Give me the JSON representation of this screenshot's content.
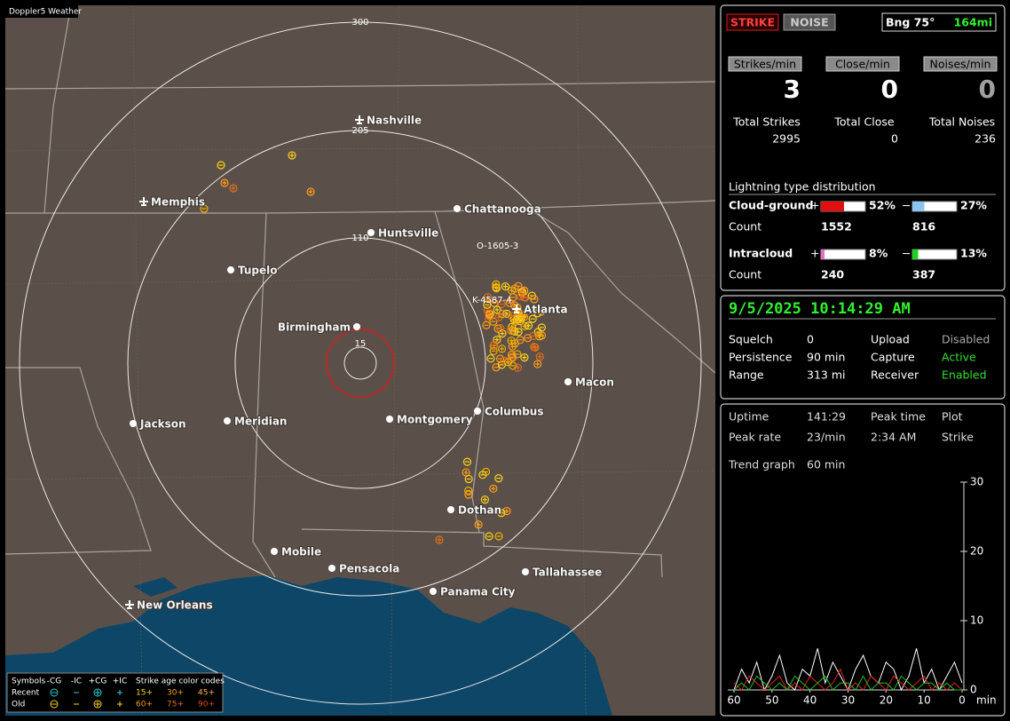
{
  "app_title": "Doppler5 Weather",
  "map": {
    "range_rings": [
      "300",
      "205",
      "110",
      "15"
    ],
    "cities": [
      "Nashville",
      "Memphis",
      "Chattanooga",
      "Huntsville",
      "Tupelo",
      "Birmingham",
      "Atlanta",
      "Macon",
      "Jackson",
      "Meridian",
      "Montgomery",
      "Columbus",
      "Dothan",
      "Mobile",
      "Pensacola",
      "Tallahassee",
      "Panama City",
      "New Orleans"
    ],
    "storms": [
      "O-1605-3",
      "K-4587-4"
    ],
    "legend": {
      "symbols_label": "Symbols",
      "columns": [
        "-CG",
        "-IC",
        "+CG",
        "+IC"
      ],
      "age_label": "Strike age color codes",
      "rows": [
        {
          "name": "Recent",
          "ages": [
            "15+",
            "30+",
            "45+"
          ]
        },
        {
          "name": "Old",
          "ages": [
            "60+",
            "75+",
            "90+"
          ]
        }
      ]
    }
  },
  "mode_buttons": [
    "STRIKE",
    "NOISE"
  ],
  "bearing": "Bng 75°",
  "distance": "164mi",
  "rates": [
    {
      "label": "Strikes/min",
      "value": 3
    },
    {
      "label": "Close/min",
      "value": 0
    },
    {
      "label": "Noises/min",
      "value": 0
    }
  ],
  "totals": [
    {
      "label": "Total Strikes",
      "value": 2995
    },
    {
      "label": "Total Close",
      "value": 0
    },
    {
      "label": "Total Noises",
      "value": 236
    }
  ],
  "distribution": {
    "title": "Lightning type distribution",
    "count_label": "Count",
    "types": [
      {
        "name": "Cloud-ground",
        "pos": {
          "sign": "+",
          "percent": 52,
          "percent_label": "52%",
          "count": 1552,
          "color": "#e01010"
        },
        "neg": {
          "sign": "−",
          "percent": 27,
          "percent_label": "27%",
          "count": 816,
          "color": "#8cc4f0"
        }
      },
      {
        "name": "Intracloud",
        "pos": {
          "sign": "+",
          "percent": 8,
          "percent_label": "8%",
          "count": 240,
          "color": "#e070c0"
        },
        "neg": {
          "sign": "−",
          "percent": 13,
          "percent_label": "13%",
          "count": 387,
          "color": "#20d020"
        }
      }
    ]
  },
  "datetime": "9/5/2025 10:14:29 AM",
  "status": [
    [
      {
        "label": "Squelch",
        "value": "0"
      },
      {
        "label": "Upload",
        "value": "Disabled",
        "color": "#a8a8a8"
      }
    ],
    [
      {
        "label": "Persistence",
        "value": "90 min"
      },
      {
        "label": "Capture",
        "value": "Active",
        "color": "#30e030"
      }
    ],
    [
      {
        "label": "Range",
        "value": "313 mi"
      },
      {
        "label": "Receiver",
        "value": "Enabled",
        "color": "#30e030"
      }
    ]
  ],
  "stats": [
    [
      {
        "label": "Uptime",
        "value": "141:29"
      },
      {
        "label": "Peak time",
        "value": "Plot"
      }
    ],
    [
      {
        "label": "Peak rate",
        "value": "23/min"
      },
      {
        "label": "2:34 AM",
        "value": "Strike"
      }
    ]
  ],
  "trend": {
    "label": "Trend graph",
    "window": "60 min",
    "x_unit": "min",
    "xlim": [
      60,
      0
    ],
    "ylim": [
      0,
      30
    ],
    "xticks": [
      60,
      50,
      40,
      30,
      20,
      10,
      0
    ],
    "yticks": [
      30,
      20,
      10,
      0
    ],
    "x": [
      60,
      58,
      56,
      54,
      52,
      50,
      48,
      46,
      44,
      42,
      40,
      38,
      36,
      34,
      32,
      30,
      28,
      26,
      24,
      22,
      20,
      18,
      16,
      14,
      12,
      10,
      8,
      6,
      4,
      2,
      0
    ],
    "series": [
      {
        "color": "#ffffff",
        "values": [
          0,
          3,
          1,
          4,
          0,
          2,
          5,
          1,
          0,
          3,
          2,
          6,
          1,
          4,
          2,
          0,
          3,
          5,
          2,
          1,
          4,
          3,
          0,
          2,
          6,
          1,
          3,
          0,
          2,
          4,
          1
        ]
      },
      {
        "color": "#e02020",
        "values": [
          1,
          0,
          2,
          1,
          0,
          1,
          2,
          0,
          1,
          0,
          2,
          1,
          0,
          1,
          3,
          0,
          1,
          0,
          2,
          1,
          0,
          2,
          1,
          0,
          1,
          2,
          0,
          1,
          0,
          1,
          0
        ]
      },
      {
        "color": "#20c020",
        "values": [
          0,
          1,
          0,
          2,
          1,
          0,
          1,
          0,
          2,
          1,
          0,
          1,
          2,
          0,
          1,
          1,
          0,
          2,
          0,
          1,
          1,
          0,
          2,
          1,
          0,
          1,
          1,
          0,
          1,
          0,
          0
        ]
      }
    ]
  }
}
